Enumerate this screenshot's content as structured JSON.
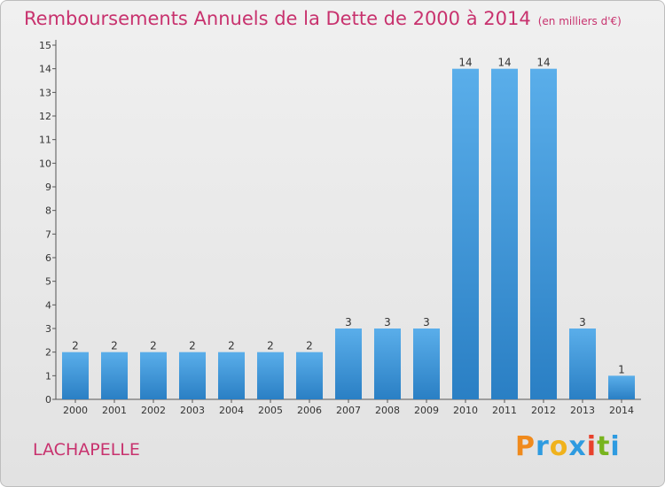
{
  "header": {
    "title": "Remboursements Annuels de la Dette de 2000 à 2014",
    "subtitle": "(en milliers d'€)"
  },
  "footer": {
    "commune": "LACHAPELLE",
    "logo_letters": [
      "P",
      "r",
      "o",
      "x",
      "i",
      "t",
      "i"
    ]
  },
  "colors": {
    "title": "#c8326e",
    "bar_top": "#5aaeea",
    "bar_bottom": "#2a7fc4",
    "logo": [
      "#f08a1c",
      "#2e9be0",
      "#f0b21c",
      "#2e9be0",
      "#e8412c",
      "#78b41e",
      "#2e9be0"
    ]
  },
  "chart_data": {
    "type": "bar",
    "title": "Remboursements Annuels de la Dette de 2000 à 2014",
    "subtitle": "(en milliers d'€)",
    "categories": [
      "2000",
      "2001",
      "2002",
      "2003",
      "2004",
      "2005",
      "2006",
      "2007",
      "2008",
      "2009",
      "2010",
      "2011",
      "2012",
      "2013",
      "2014"
    ],
    "values": [
      2,
      2,
      2,
      2,
      2,
      2,
      2,
      3,
      3,
      3,
      14,
      14,
      14,
      3,
      1
    ],
    "value_labels": [
      "2",
      "2",
      "2",
      "2",
      "2",
      "2",
      "2",
      "3",
      "3",
      "3",
      "14",
      "14",
      "14",
      "3",
      "1"
    ],
    "yticks": [
      0,
      1,
      2,
      3,
      4,
      5,
      6,
      7,
      8,
      9,
      10,
      11,
      12,
      13,
      14,
      15
    ],
    "ylim": [
      0,
      15
    ],
    "xlabel": "",
    "ylabel": "",
    "grid": false,
    "legend": "none"
  }
}
